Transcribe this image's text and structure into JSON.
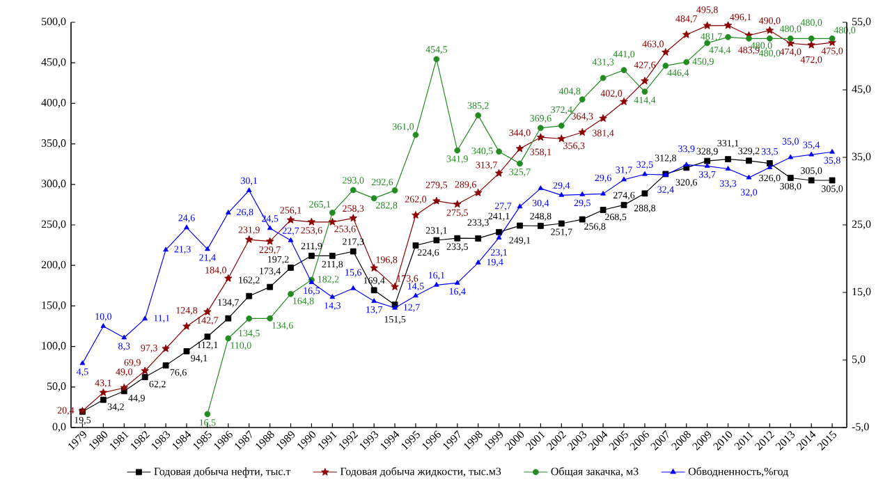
{
  "chart_data": {
    "type": "line",
    "categories": [
      "1979",
      "1980",
      "1981",
      "1982",
      "1983",
      "1984",
      "1985",
      "1986",
      "1987",
      "1988",
      "1989",
      "1990",
      "1991",
      "1992",
      "1993",
      "1994",
      "1995",
      "1996",
      "1997",
      "1998",
      "1999",
      "2000",
      "2001",
      "2002",
      "2003",
      "2004",
      "2005",
      "2006",
      "2007",
      "2008",
      "2009",
      "2010",
      "2011",
      "2012",
      "2013",
      "2014",
      "2015"
    ],
    "series": [
      {
        "name": "Годовая добыча нефти, тыс.т",
        "color": "#000000",
        "marker": "square",
        "values": [
          19.5,
          34.2,
          44.9,
          62.2,
          76.6,
          94.1,
          112.1,
          134.7,
          162.2,
          173.4,
          197.2,
          211.9,
          211.8,
          217.3,
          169.4,
          151.5,
          224.6,
          231.1,
          233.5,
          233.3,
          241.1,
          249.1,
          248.8,
          251.7,
          256.8,
          268.5,
          274.6,
          288.8,
          312.8,
          320.6,
          328.9,
          331.1,
          329.2,
          326.0,
          308.0,
          305.0,
          305.0
        ],
        "value_labels": [
          "19,5",
          "34,2",
          "44,9",
          "62,2",
          "76,6",
          "94,1",
          "112,1",
          "134,7",
          "162,2",
          "173,4",
          "197,2",
          "211,9",
          "211,8",
          "217,3",
          "169,4",
          "151,5",
          "224,6",
          "231,1",
          "233,5",
          "233,3",
          "241,1",
          "249,1",
          "248,8",
          "251,7",
          "256,8",
          "268,5",
          "274,6",
          "288,8",
          "312,8",
          "320,6",
          "328,9",
          "331,1",
          "329,2",
          "326,0",
          "308,0",
          "305,0",
          "305,0"
        ]
      },
      {
        "name": "Годовая добыча жидкости, тыс.м3",
        "color": "#8b0000",
        "marker": "star",
        "values": [
          20.4,
          43.1,
          49.0,
          69.9,
          97.3,
          124.8,
          142.7,
          184.0,
          231.9,
          229.7,
          256.1,
          253.6,
          253.6,
          258.3,
          196.8,
          173.6,
          262.0,
          279.5,
          275.5,
          289.6,
          313.7,
          344.0,
          358.1,
          356.3,
          364.3,
          381.4,
          402.0,
          427.6,
          463.0,
          484.7,
          495.8,
          496.1,
          483.9,
          490.0,
          474.0,
          472.0,
          475.0
        ],
        "value_labels": [
          "20,4",
          "43,1",
          "49,0",
          "69,9",
          "97,3",
          "124,8",
          "142,7",
          "184,0",
          "231,9",
          "229,7",
          "256,1",
          "253,6",
          "253,6",
          "258,3",
          "196,8",
          "173,6",
          "262,0",
          "279,5",
          "275,5",
          "289,6",
          "313,7",
          "344,0",
          "358,1",
          "356,3",
          "364,3",
          "381,4",
          "402,0",
          "427,6",
          "463,0",
          "484,7",
          "495,8",
          "496,1",
          "483,9",
          "490,0",
          "474,0",
          "472,0",
          "475,0"
        ]
      },
      {
        "name": "Общая закачка, м3",
        "color": "#228b22",
        "marker": "circle",
        "values": [
          null,
          null,
          null,
          null,
          null,
          null,
          16.5,
          110.0,
          134.5,
          134.6,
          164.8,
          182.2,
          265.1,
          293.0,
          282.8,
          292.6,
          361.0,
          454.5,
          341.9,
          385.2,
          340.5,
          325.7,
          369.6,
          372.4,
          404.8,
          431.3,
          441.0,
          414.4,
          446.4,
          450.9,
          474.4,
          481.7,
          480.0,
          480.0,
          480.0,
          480.0,
          480.0
        ],
        "value_labels": [
          null,
          null,
          null,
          null,
          null,
          null,
          "16,5",
          "110,0",
          "134,5",
          "134,6",
          "164,8",
          "182,2",
          "265,1",
          "293,0",
          "282,8",
          "292,6",
          "361,0",
          "454,5",
          "341,9",
          "385,2",
          "340,5",
          "325,7",
          "369,6",
          "372,4",
          "404,8",
          "431,3",
          "441,0",
          "414,4",
          "446,4",
          "450,9",
          "474,4",
          "481,7",
          "480,0",
          "480,0",
          "480,0",
          "480,0",
          "480,0"
        ]
      },
      {
        "name": "Обводненность,%год",
        "color": "#0000ff",
        "marker": "triangle",
        "axis": "y2",
        "values": [
          4.5,
          10.0,
          8.3,
          11.1,
          21.3,
          24.6,
          21.4,
          26.8,
          30.1,
          24.5,
          22.7,
          16.5,
          14.3,
          15.6,
          13.7,
          12.7,
          14.5,
          16.1,
          16.4,
          19.4,
          23.1,
          27.7,
          30.4,
          29.4,
          29.5,
          29.6,
          31.7,
          32.5,
          32.4,
          33.9,
          33.7,
          33.3,
          32.0,
          33.5,
          35.0,
          35.4,
          35.8
        ],
        "value_labels": [
          "4,5",
          "10,0",
          "8,3",
          "11,1",
          "21,3",
          "24,6",
          "21,4",
          "26,8",
          "30,1",
          "24,5",
          "22,7",
          "16,5",
          "14,3",
          "15,6",
          "13,7",
          "12,7",
          "14,5",
          "16,1",
          "16,4",
          "19,4",
          "23,1",
          "27,7",
          "30,4",
          "29,4",
          "29,5",
          "29,6",
          "31,7",
          "32,5",
          "32,4",
          "33,9",
          "33,7",
          "33,3",
          "32,0",
          "33,5",
          "35,0",
          "35,4",
          "35,8"
        ]
      }
    ],
    "ylim": [
      0,
      500
    ],
    "yticks": [
      {
        "value": 0,
        "label": "0,0"
      },
      {
        "value": 50,
        "label": "50,0"
      },
      {
        "value": 100,
        "label": "100,0"
      },
      {
        "value": 150,
        "label": "150,0"
      },
      {
        "value": 200,
        "label": "200,0"
      },
      {
        "value": 250,
        "label": "250,0"
      },
      {
        "value": 300,
        "label": "300,0"
      },
      {
        "value": 350,
        "label": "350,0"
      },
      {
        "value": 400,
        "label": "400,0"
      },
      {
        "value": 450,
        "label": "450,0"
      },
      {
        "value": 500,
        "label": "500,0"
      }
    ],
    "y2lim": [
      -5,
      55
    ],
    "y2ticks": [
      {
        "value": -5,
        "label": "-5,0"
      },
      {
        "value": 5,
        "label": "5,0"
      },
      {
        "value": 15,
        "label": "15,0"
      },
      {
        "value": 25,
        "label": "25,0"
      },
      {
        "value": 35,
        "label": "35,0"
      },
      {
        "value": 45,
        "label": "45,0"
      },
      {
        "value": 55,
        "label": "55,0"
      }
    ],
    "grid": false,
    "legend": "bottom"
  }
}
